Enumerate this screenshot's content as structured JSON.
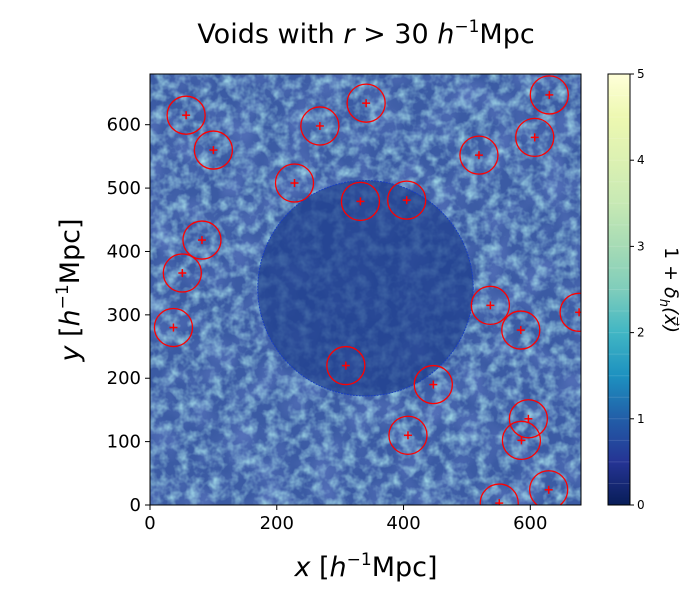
{
  "chart_data": {
    "type": "scatter",
    "title": "Voids with r > 30 h⁻¹Mpc",
    "title_parts": {
      "a": "Voids with ",
      "b": "r",
      "c": " > 30 ",
      "d": "h",
      "e": "−1",
      "f": "Mpc"
    },
    "xlabel_parts": {
      "a": "x",
      "b": " [",
      "c": "h",
      "d": "−1",
      "e": "Mpc]"
    },
    "ylabel_parts": {
      "a": "y",
      "b": " [",
      "c": "h",
      "d": "−1",
      "e": "Mpc]"
    },
    "colorbar_label_parts": {
      "a": "1 + ",
      "b": "δ",
      "c": "h",
      "d": "(x⃗)"
    },
    "xlim": [
      0,
      680
    ],
    "ylim": [
      0,
      680
    ],
    "x_ticks": [
      "0",
      "200",
      "400",
      "600"
    ],
    "y_ticks": [
      "0",
      "100",
      "200",
      "300",
      "400",
      "500",
      "600"
    ],
    "colorbar": {
      "range": [
        0,
        5
      ],
      "ticks": [
        "0",
        "1",
        "2",
        "3",
        "4",
        "5"
      ]
    },
    "background": "density field heatmap (1 + δh)",
    "large_void": {
      "x": 340,
      "y": 342,
      "r": 170
    },
    "voids": [
      {
        "x": 57,
        "y": 615
      },
      {
        "x": 100,
        "y": 560
      },
      {
        "x": 268,
        "y": 598
      },
      {
        "x": 341,
        "y": 634
      },
      {
        "x": 228,
        "y": 508
      },
      {
        "x": 332,
        "y": 479
      },
      {
        "x": 405,
        "y": 481
      },
      {
        "x": 519,
        "y": 552
      },
      {
        "x": 607,
        "y": 580
      },
      {
        "x": 630,
        "y": 647
      },
      {
        "x": 82,
        "y": 418
      },
      {
        "x": 51,
        "y": 366
      },
      {
        "x": 37,
        "y": 280
      },
      {
        "x": 537,
        "y": 315
      },
      {
        "x": 585,
        "y": 276
      },
      {
        "x": 677,
        "y": 304
      },
      {
        "x": 309,
        "y": 220
      },
      {
        "x": 447,
        "y": 190
      },
      {
        "x": 407,
        "y": 110
      },
      {
        "x": 597,
        "y": 136
      },
      {
        "x": 586,
        "y": 102
      },
      {
        "x": 629,
        "y": 24
      },
      {
        "x": 551,
        "y": 3
      }
    ],
    "void_radius": 30,
    "colors": {
      "marker": "#ff0000",
      "large_void_edge": "#1a3fc0"
    }
  }
}
